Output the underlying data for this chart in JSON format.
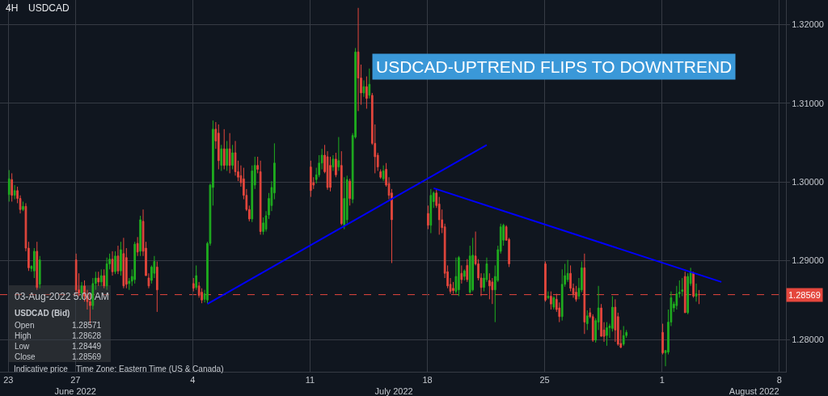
{
  "chart_data": {
    "type": "candlestick",
    "title": "USDCAD",
    "subtitle": "4H",
    "x": [
      "2022-06-23T01:00",
      "2022-06-23T05:00",
      "2022-06-23T09:00",
      "2022-06-23T13:00",
      "2022-06-23T17:00",
      "2022-06-23T21:00",
      "2022-06-24T01:00",
      "2022-06-24T05:00",
      "2022-06-24T09:00",
      "2022-06-24T13:00",
      "2022-06-24T17:00",
      "2022-06-24T21:00",
      "2022-06-27T01:00",
      "2022-06-27T05:00",
      "2022-06-27T09:00",
      "2022-06-27T13:00",
      "2022-06-27T17:00",
      "2022-06-27T21:00",
      "2022-06-28T01:00",
      "2022-06-28T05:00",
      "2022-06-28T09:00",
      "2022-06-28T13:00",
      "2022-06-28T17:00",
      "2022-06-28T21:00",
      "2022-06-29T01:00",
      "2022-06-29T05:00",
      "2022-06-29T09:00",
      "2022-06-29T13:00",
      "2022-06-29T17:00",
      "2022-06-29T21:00",
      "2022-06-30T01:00",
      "2022-06-30T05:00",
      "2022-06-30T09:00",
      "2022-06-30T13:00",
      "2022-06-30T17:00",
      "2022-06-30T21:00",
      "2022-07-01T01:00",
      "2022-07-01T05:00",
      "2022-07-01T09:00",
      "2022-07-01T13:00",
      "2022-07-01T17:00",
      "2022-07-01T21:00",
      "2022-07-04T01:00",
      "2022-07-04T05:00",
      "2022-07-04T09:00",
      "2022-07-04T13:00",
      "2022-07-04T17:00",
      "2022-07-04T21:00",
      "2022-07-05T01:00",
      "2022-07-05T05:00",
      "2022-07-05T09:00",
      "2022-07-05T13:00",
      "2022-07-05T17:00",
      "2022-07-05T21:00",
      "2022-07-06T01:00",
      "2022-07-06T05:00",
      "2022-07-06T09:00",
      "2022-07-06T13:00",
      "2022-07-06T17:00",
      "2022-07-06T21:00",
      "2022-07-07T01:00",
      "2022-07-07T05:00",
      "2022-07-07T09:00",
      "2022-07-07T13:00",
      "2022-07-07T17:00",
      "2022-07-07T21:00",
      "2022-07-08T01:00",
      "2022-07-08T05:00",
      "2022-07-08T09:00",
      "2022-07-08T13:00",
      "2022-07-08T17:00",
      "2022-07-08T21:00",
      "2022-07-11T01:00",
      "2022-07-11T05:00",
      "2022-07-11T09:00",
      "2022-07-11T13:00",
      "2022-07-11T17:00",
      "2022-07-11T21:00",
      "2022-07-12T01:00",
      "2022-07-12T05:00",
      "2022-07-12T09:00",
      "2022-07-12T13:00",
      "2022-07-12T17:00",
      "2022-07-12T21:00",
      "2022-07-13T01:00",
      "2022-07-13T05:00",
      "2022-07-13T09:00",
      "2022-07-13T13:00",
      "2022-07-13T17:00",
      "2022-07-13T21:00",
      "2022-07-14T01:00",
      "2022-07-14T05:00",
      "2022-07-14T09:00",
      "2022-07-14T13:00",
      "2022-07-14T17:00",
      "2022-07-14T21:00",
      "2022-07-15T01:00",
      "2022-07-15T05:00",
      "2022-07-15T09:00",
      "2022-07-15T13:00",
      "2022-07-15T17:00",
      "2022-07-15T21:00",
      "2022-07-18T01:00",
      "2022-07-18T05:00",
      "2022-07-18T09:00",
      "2022-07-18T13:00",
      "2022-07-18T17:00",
      "2022-07-18T21:00",
      "2022-07-19T01:00",
      "2022-07-19T05:00",
      "2022-07-19T09:00",
      "2022-07-19T13:00",
      "2022-07-19T17:00",
      "2022-07-19T21:00",
      "2022-07-20T01:00",
      "2022-07-20T05:00",
      "2022-07-20T09:00",
      "2022-07-20T13:00",
      "2022-07-20T17:00",
      "2022-07-20T21:00",
      "2022-07-21T01:00",
      "2022-07-21T05:00",
      "2022-07-21T09:00",
      "2022-07-21T13:00",
      "2022-07-21T17:00",
      "2022-07-21T21:00",
      "2022-07-22T01:00",
      "2022-07-22T05:00",
      "2022-07-22T09:00",
      "2022-07-22T13:00",
      "2022-07-22T17:00",
      "2022-07-22T21:00",
      "2022-07-25T01:00",
      "2022-07-25T05:00",
      "2022-07-25T09:00",
      "2022-07-25T13:00",
      "2022-07-25T17:00",
      "2022-07-25T21:00",
      "2022-07-26T01:00",
      "2022-07-26T05:00",
      "2022-07-26T09:00",
      "2022-07-26T13:00",
      "2022-07-26T17:00",
      "2022-07-26T21:00",
      "2022-07-27T01:00",
      "2022-07-27T05:00",
      "2022-07-27T09:00",
      "2022-07-27T13:00",
      "2022-07-27T17:00",
      "2022-07-27T21:00",
      "2022-07-28T01:00",
      "2022-07-28T05:00",
      "2022-07-28T09:00",
      "2022-07-28T13:00",
      "2022-07-28T17:00",
      "2022-07-28T21:00",
      "2022-07-29T01:00",
      "2022-07-29T05:00",
      "2022-07-29T09:00",
      "2022-07-29T13:00",
      "2022-07-29T17:00",
      "2022-07-29T21:00",
      "2022-08-01T01:00",
      "2022-08-01T05:00",
      "2022-08-01T09:00",
      "2022-08-01T13:00",
      "2022-08-01T17:00",
      "2022-08-01T21:00",
      "2022-08-02T01:00",
      "2022-08-02T05:00",
      "2022-08-02T09:00",
      "2022-08-02T13:00",
      "2022-08-02T17:00",
      "2022-08-02T21:00",
      "2022-08-03T01:00",
      "2022-08-03T05:00"
    ],
    "ohlc": [
      [
        1.2984,
        1.3015,
        1.2975,
        1.3004
      ],
      [
        1.3003,
        1.3011,
        1.2975,
        1.2983
      ],
      [
        1.2983,
        1.2996,
        1.2978,
        1.2989
      ],
      [
        1.2989,
        1.2994,
        1.2973,
        1.2979
      ],
      [
        1.2979,
        1.2983,
        1.296,
        1.2965
      ],
      [
        1.2965,
        1.2975,
        1.2963,
        1.2969
      ],
      [
        1.2969,
        1.2973,
        1.2912,
        1.2916
      ],
      [
        1.2916,
        1.2924,
        1.2887,
        1.2891
      ],
      [
        1.289,
        1.2894,
        1.2886,
        1.2893
      ],
      [
        1.2887,
        1.2916,
        1.2878,
        1.2912
      ],
      [
        1.2912,
        1.2924,
        1.2863,
        1.2866
      ],
      [
        1.287,
        1.2906,
        1.2865,
        1.2901
      ],
      [
        1.2901,
        1.2909,
        1.2858,
        1.2863
      ],
      [
        1.2863,
        1.2884,
        1.2855,
        1.2859
      ],
      [
        1.2859,
        1.2873,
        1.2851,
        1.2868
      ],
      [
        1.2868,
        1.2875,
        1.2848,
        1.2855
      ],
      [
        1.2855,
        1.2863,
        1.2838,
        1.2848
      ],
      [
        1.2848,
        1.2858,
        1.282,
        1.2843
      ],
      [
        1.2843,
        1.2878,
        1.2838,
        1.2871
      ],
      [
        1.2871,
        1.2886,
        1.2863,
        1.2878
      ],
      [
        1.2878,
        1.2886,
        1.2868,
        1.2873
      ],
      [
        1.2873,
        1.2889,
        1.2868,
        1.2881
      ],
      [
        1.2881,
        1.2889,
        1.2865,
        1.2868
      ],
      [
        1.2868,
        1.2904,
        1.2863,
        1.2896
      ],
      [
        1.2896,
        1.2909,
        1.2889,
        1.2902
      ],
      [
        1.2902,
        1.2912,
        1.2881,
        1.2886
      ],
      [
        1.2886,
        1.2912,
        1.2883,
        1.2906
      ],
      [
        1.2906,
        1.2919,
        1.2883,
        1.2887
      ],
      [
        1.2887,
        1.2924,
        1.2881,
        1.2914
      ],
      [
        1.2909,
        1.2929,
        1.2865,
        1.2868
      ],
      [
        1.2904,
        1.2916,
        1.2865,
        1.287
      ],
      [
        1.2871,
        1.2878,
        1.2863,
        1.2874
      ],
      [
        1.2874,
        1.2889,
        1.2868,
        1.288
      ],
      [
        1.2876,
        1.2924,
        1.2871,
        1.2921
      ],
      [
        1.2922,
        1.293,
        1.2906,
        1.2911
      ],
      [
        1.2912,
        1.2957,
        1.2906,
        1.2952
      ],
      [
        1.295,
        1.2965,
        1.2906,
        1.2912
      ],
      [
        1.2916,
        1.2924,
        1.2881,
        1.2881
      ],
      [
        1.2878,
        1.2884,
        1.2865,
        1.2868
      ],
      [
        1.2875,
        1.2894,
        1.2871,
        1.2892
      ],
      [
        1.2884,
        1.2906,
        1.2878,
        1.2899
      ],
      [
        1.2892,
        1.2899,
        1.2835,
        1.2863
      ],
      [
        1.2871,
        1.2878,
        1.2861,
        1.2865
      ],
      [
        1.2866,
        1.2894,
        1.2863,
        1.2881
      ],
      [
        1.2868,
        1.2873,
        1.2853,
        1.2856
      ],
      [
        1.286,
        1.2865,
        1.2846,
        1.285
      ],
      [
        1.2851,
        1.2863,
        1.2847,
        1.2858
      ],
      [
        1.285,
        1.2924,
        1.2846,
        1.2922
      ],
      [
        1.2922,
        1.2998,
        1.2919,
        1.2996
      ],
      [
        1.2993,
        1.3078,
        1.297,
        1.3067
      ],
      [
        1.3067,
        1.3076,
        1.3042,
        1.3052
      ],
      [
        1.3062,
        1.3073,
        1.3016,
        1.3027
      ],
      [
        1.3021,
        1.3047,
        1.3014,
        1.3042
      ],
      [
        1.3042,
        1.3067,
        1.3016,
        1.3021
      ],
      [
        1.3021,
        1.3052,
        1.3014,
        1.3042
      ],
      [
        1.3042,
        1.3062,
        1.3011,
        1.3021
      ],
      [
        1.3021,
        1.3047,
        1.3016,
        1.3037
      ],
      [
        1.3037,
        1.3052,
        1.3008,
        1.3013
      ],
      [
        1.3013,
        1.3027,
        1.3001,
        1.3006
      ],
      [
        1.3008,
        1.3021,
        1.2994,
        1.2999
      ],
      [
        1.3004,
        1.3018,
        1.2978,
        1.2983
      ],
      [
        1.2983,
        1.2991,
        1.2963,
        1.2965
      ],
      [
        1.2965,
        1.297,
        1.295,
        1.2953
      ],
      [
        1.2953,
        1.3021,
        1.2949,
        1.3014
      ],
      [
        1.2996,
        1.3032,
        1.2991,
        1.3021
      ],
      [
        1.3021,
        1.3032,
        1.3011,
        1.3016
      ],
      [
        1.3013,
        1.3027,
        1.2933,
        1.2937
      ],
      [
        1.2937,
        1.2955,
        1.2933,
        1.2948
      ],
      [
        1.294,
        1.2963,
        1.2937,
        1.2957
      ],
      [
        1.2958,
        1.2986,
        1.2953,
        1.2979
      ],
      [
        1.297,
        1.3001,
        1.2963,
        1.2993
      ],
      [
        1.2986,
        1.3049,
        1.2978,
        1.3024
      ],
      [
        1.3019,
        1.3027,
        1.2981,
        1.2989
      ],
      [
        1.2999,
        1.3006,
        1.2991,
        1.2996
      ],
      [
        1.3003,
        1.3018,
        1.2998,
        1.3009
      ],
      [
        1.3009,
        1.3034,
        1.3006,
        1.3024
      ],
      [
        1.3024,
        1.3042,
        1.3016,
        1.3034
      ],
      [
        1.3034,
        1.3047,
        1.3011,
        1.3013
      ],
      [
        1.3032,
        1.3039,
        1.299,
        1.2993
      ],
      [
        1.3021,
        1.3032,
        1.2988,
        1.2993
      ],
      [
        1.3019,
        1.3034,
        1.3014,
        1.3029
      ],
      [
        1.3029,
        1.3037,
        1.3006,
        1.3009
      ],
      [
        1.3019,
        1.3057,
        1.3014,
        1.3027
      ],
      [
        1.3021,
        1.3039,
        1.2945,
        1.2947
      ],
      [
        1.2945,
        1.3006,
        1.294,
        1.2979
      ],
      [
        1.2952,
        1.3008,
        1.2947,
        1.3003
      ],
      [
        1.3001,
        1.3004,
        1.297,
        1.2979
      ],
      [
        1.2978,
        1.3062,
        1.2973,
        1.3059
      ],
      [
        1.3057,
        1.317,
        1.3055,
        1.3165
      ],
      [
        1.3165,
        1.3221,
        1.309,
        1.3132
      ],
      [
        1.3132,
        1.3149,
        1.3098,
        1.3113
      ],
      [
        1.3113,
        1.3129,
        1.3108,
        1.3121
      ],
      [
        1.3121,
        1.3134,
        1.3093,
        1.3106
      ],
      [
        1.311,
        1.3144,
        1.3106,
        1.3124
      ],
      [
        1.311,
        1.3113,
        1.3047,
        1.3049
      ],
      [
        1.3049,
        1.3073,
        1.3011,
        1.3032
      ],
      [
        1.3034,
        1.3037,
        1.3014,
        1.3019
      ],
      [
        1.3013,
        1.3016,
        1.3004,
        1.3006
      ],
      [
        1.3004,
        1.3021,
        1.3001,
        1.3014
      ],
      [
        1.3016,
        1.3024,
        1.2994,
        1.2996
      ],
      [
        1.2998,
        1.3006,
        1.2978,
        1.2983
      ],
      [
        1.2986,
        1.2991,
        1.2897,
        1.2952
      ],
      [
        1.296,
        1.297,
        1.294,
        1.2945
      ],
      [
        1.2945,
        1.2991,
        1.2935,
        1.2983
      ],
      [
        1.2975,
        1.2988,
        1.2967,
        1.2986
      ],
      [
        1.2986,
        1.299,
        1.2967,
        1.297
      ],
      [
        1.2972,
        1.2981,
        1.2933,
        1.2952
      ],
      [
        1.2952,
        1.2965,
        1.2935,
        1.2942
      ],
      [
        1.2943,
        1.2947,
        1.2878,
        1.2884
      ],
      [
        1.2886,
        1.2894,
        1.2865,
        1.2868
      ],
      [
        1.287,
        1.2878,
        1.2858,
        1.2861
      ],
      [
        1.2865,
        1.2873,
        1.2858,
        1.2862
      ],
      [
        1.2861,
        1.2904,
        1.2858,
        1.288
      ],
      [
        1.2863,
        1.2906,
        1.2855,
        1.2904
      ],
      [
        1.2884,
        1.2894,
        1.2871,
        1.2876
      ],
      [
        1.288,
        1.2889,
        1.2875,
        1.2887
      ],
      [
        1.2894,
        1.2902,
        1.2873,
        1.2876
      ],
      [
        1.286,
        1.2919,
        1.2858,
        1.2906
      ],
      [
        1.2863,
        1.2929,
        1.2861,
        1.2907
      ],
      [
        1.2906,
        1.2937,
        1.2894,
        1.2896
      ],
      [
        1.2896,
        1.2902,
        1.2875,
        1.2878
      ],
      [
        1.2878,
        1.2884,
        1.2855,
        1.2866
      ],
      [
        1.2866,
        1.2884,
        1.2861,
        1.2878
      ],
      [
        1.2876,
        1.2904,
        1.2873,
        1.2896
      ],
      [
        1.2875,
        1.2884,
        1.2851,
        1.2868
      ],
      [
        1.2873,
        1.2878,
        1.2845,
        1.2863
      ],
      [
        1.2863,
        1.2894,
        1.2822,
        1.288
      ],
      [
        1.2875,
        1.2919,
        1.2873,
        1.2914
      ],
      [
        1.2912,
        1.2947,
        1.2909,
        1.2943
      ],
      [
        1.2926,
        1.2947,
        1.2919,
        1.2945
      ],
      [
        1.2943,
        1.2945,
        1.2926,
        1.2926
      ],
      [
        1.2927,
        1.2929,
        1.2892,
        1.2896
      ],
      [
        1.2896,
        1.2899,
        1.2848,
        1.285
      ],
      [
        1.2853,
        1.2861,
        1.2851,
        1.2855
      ],
      [
        1.2855,
        1.2861,
        1.2838,
        1.2845
      ],
      [
        1.2841,
        1.2855,
        1.2838,
        1.2853
      ],
      [
        1.2851,
        1.2858,
        1.2835,
        1.2838
      ],
      [
        1.284,
        1.2847,
        1.2822,
        1.2829
      ],
      [
        1.2829,
        1.2889,
        1.2824,
        1.287
      ],
      [
        1.287,
        1.2896,
        1.2867,
        1.2881
      ],
      [
        1.2876,
        1.2901,
        1.2873,
        1.2884
      ],
      [
        1.2884,
        1.2894,
        1.2861,
        1.2865
      ],
      [
        1.2865,
        1.2871,
        1.2853,
        1.2858
      ],
      [
        1.286,
        1.2868,
        1.2848,
        1.2851
      ],
      [
        1.2855,
        1.2878,
        1.2851,
        1.2865
      ],
      [
        1.2863,
        1.2899,
        1.286,
        1.2891
      ],
      [
        1.2891,
        1.2909,
        1.2807,
        1.2822
      ],
      [
        1.282,
        1.2837,
        1.2812,
        1.283
      ],
      [
        1.2834,
        1.284,
        1.2827,
        1.2829
      ],
      [
        1.2829,
        1.2832,
        1.2797,
        1.2799
      ],
      [
        1.2799,
        1.2827,
        1.2796,
        1.2824
      ],
      [
        1.2822,
        1.2868,
        1.2812,
        1.284
      ],
      [
        1.284,
        1.2845,
        1.2804,
        1.2804
      ],
      [
        1.2812,
        1.2822,
        1.2797,
        1.2804
      ],
      [
        1.2805,
        1.2822,
        1.2792,
        1.2815
      ],
      [
        1.2815,
        1.282,
        1.2802,
        1.2817
      ],
      [
        1.2814,
        1.2855,
        1.281,
        1.2841
      ],
      [
        1.2841,
        1.2851,
        1.2797,
        1.2812
      ],
      [
        1.2829,
        1.2834,
        1.2792,
        1.2794
      ],
      [
        1.2795,
        1.2812,
        1.2789,
        1.279
      ],
      [
        1.2794,
        1.2817,
        1.2792,
        1.2805
      ],
      [
        1.2805,
        1.2812,
        1.2802,
        1.2809
      ],
      [
        1.2809,
        1.282,
        1.2781,
        1.2783
      ],
      [
        1.2783,
        1.2786,
        1.2766,
        1.2786
      ],
      [
        1.2784,
        1.2838,
        1.2781,
        1.2822
      ],
      [
        1.2822,
        1.2861,
        1.2817,
        1.2853
      ],
      [
        1.284,
        1.2848,
        1.2835,
        1.2845
      ],
      [
        1.2843,
        1.2868,
        1.2838,
        1.2858
      ],
      [
        1.2858,
        1.2875,
        1.2853,
        1.286
      ],
      [
        1.2861,
        1.2878,
        1.2855,
        1.2863
      ],
      [
        1.288,
        1.2886,
        1.2834,
        1.2834
      ],
      [
        1.2834,
        1.2884,
        1.2832,
        1.288
      ],
      [
        1.2871,
        1.2891,
        1.2868,
        1.2886
      ],
      [
        1.2884,
        1.2886,
        1.2853,
        1.2855
      ],
      [
        1.2855,
        1.2871,
        1.2848,
        1.2858
      ],
      [
        1.28571,
        1.28628,
        1.28449,
        1.28569
      ]
    ],
    "series": [
      {
        "type": "line",
        "color": "#0000ff",
        "x": [
          "2022-07-04T21:00",
          "2022-07-21T13:00"
        ],
        "values": [
          1.2845,
          1.3047
        ]
      },
      {
        "type": "line",
        "color": "#0000ff",
        "x": [
          "2022-07-18T09:00",
          "2022-08-04T13:00"
        ],
        "values": [
          1.2992,
          1.2873
        ]
      }
    ],
    "xlim": [
      "2022-06-22T12:00",
      "2022-08-08T09:30"
    ],
    "x2lim": [
      "2022-06-22T12:00",
      "2022-08-08T09:30"
    ],
    "xticks": [
      {
        "value": "2022-06-23",
        "label": "23"
      },
      {
        "value": "2022-06-27",
        "label": "27"
      },
      {
        "value": "2022-07-04",
        "label": "4"
      },
      {
        "value": "2022-07-11",
        "label": "11"
      },
      {
        "value": "2022-07-18",
        "label": "18"
      },
      {
        "value": "2022-07-25",
        "label": "25"
      },
      {
        "value": "2022-08-01",
        "label": "1"
      },
      {
        "value": "2022-08-08",
        "label": "8"
      }
    ],
    "x2ticks": [
      {
        "value": "2022-06-27",
        "label": "June 2022"
      },
      {
        "value": "2022-07-16",
        "label": "July 2022"
      },
      {
        "value": "2022-08-06T12:00",
        "label": "August 2022"
      }
    ],
    "ylim": [
      1.2759,
      1.3231
    ],
    "yticks": [
      {
        "value": 1.28,
        "label": "1.28000"
      },
      {
        "value": 1.29,
        "label": "1.29000"
      },
      {
        "value": 1.3,
        "label": "1.30000"
      },
      {
        "value": 1.31,
        "label": "1.31000"
      },
      {
        "value": 1.32,
        "label": "1.32000"
      }
    ],
    "ref_lines": [
      {
        "axis": "y",
        "value": 1.28569,
        "label": "1.28569",
        "color": "#e5473d",
        "line_style": "dashed"
      }
    ],
    "annotations": [
      "USDCAD-UPTREND FLIPS TO DOWNTREND",
      "03-Aug-2022 5:00 AM",
      "USDCAD (Bid)",
      "Open",
      "1.28571",
      "High",
      "1.28628",
      "Low",
      "1.28449",
      "Close",
      "1.28569",
      "Indicative price",
      "Time Zone: Eastern Time (US & Canada)"
    ],
    "grid": true
  }
}
